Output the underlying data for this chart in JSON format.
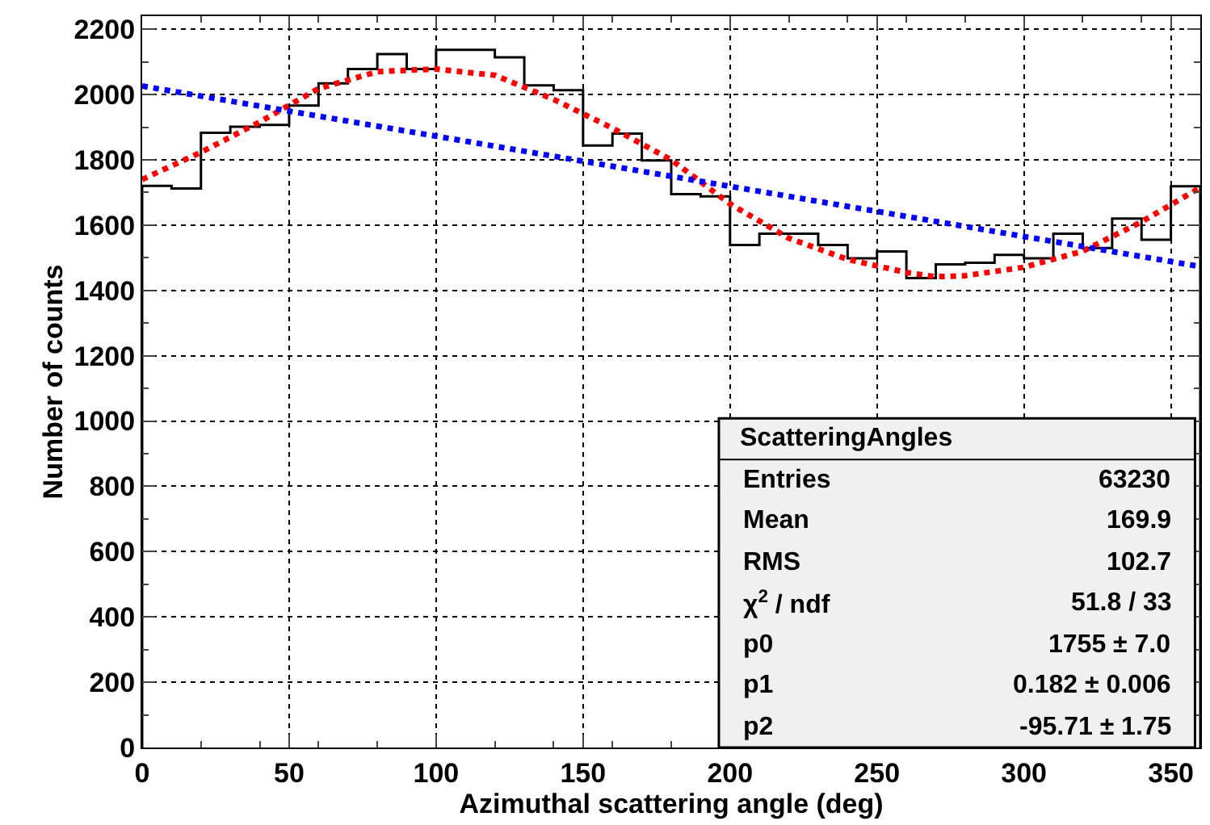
{
  "chart_data": {
    "type": "histogram",
    "xlabel": "Azimuthal scattering angle (deg)",
    "ylabel": "Number of counts",
    "xlim": [
      0,
      360
    ],
    "ylim": [
      0,
      2240
    ],
    "xticks": [
      0,
      50,
      100,
      150,
      200,
      250,
      300,
      350
    ],
    "yticks": [
      0,
      200,
      400,
      600,
      800,
      1000,
      1200,
      1400,
      1600,
      1800,
      2000,
      2200
    ],
    "grid": true,
    "series": [
      {
        "color": "#000000",
        "bins": [
          0,
          10,
          20,
          30,
          40,
          50,
          60,
          70,
          80,
          90,
          100,
          110,
          120,
          130,
          140,
          150,
          160,
          170,
          180,
          190,
          200,
          210,
          220,
          230,
          240,
          250,
          260,
          270,
          280,
          290,
          300,
          310,
          320,
          330,
          340,
          350,
          360
        ],
        "values": [
          1720,
          1712,
          1883,
          1901,
          1907,
          1966,
          2034,
          2078,
          2124,
          2078,
          2137,
          2137,
          2114,
          2028,
          2013,
          1844,
          1880,
          1798,
          1695,
          1688,
          1539,
          1574,
          1574,
          1539,
          1498,
          1519,
          1438,
          1480,
          1485,
          1509,
          1498,
          1574,
          1530,
          1620,
          1555,
          1719
        ]
      },
      {
        "type": "line",
        "color": "#ff0000",
        "line_style": "dotted",
        "x": [
          0,
          20,
          40,
          60,
          80,
          100,
          120,
          140,
          160,
          180,
          200,
          220,
          240,
          260,
          270,
          280,
          300,
          320,
          340,
          360
        ],
        "values": [
          1740,
          1823,
          1916,
          2018,
          2070,
          2078,
          2059,
          1985,
          1897,
          1800,
          1665,
          1560,
          1495,
          1455,
          1442,
          1445,
          1471,
          1520,
          1610,
          1715
        ]
      },
      {
        "type": "line",
        "color": "#0000ff",
        "line_style": "dotted",
        "x": [
          0,
          360
        ],
        "values": [
          2026,
          1473
        ]
      }
    ],
    "annotations": [
      "ScatteringAngles",
      "Entries",
      "63230",
      "Mean",
      "169.9",
      "RMS",
      "102.7",
      "χ$^{2}$ / ndf",
      "51.8 / 33",
      "p0",
      "1755 ± 7.0",
      "p1",
      "0.182 ± 0.006",
      "p2",
      "-95.71 ± 1.75"
    ]
  }
}
